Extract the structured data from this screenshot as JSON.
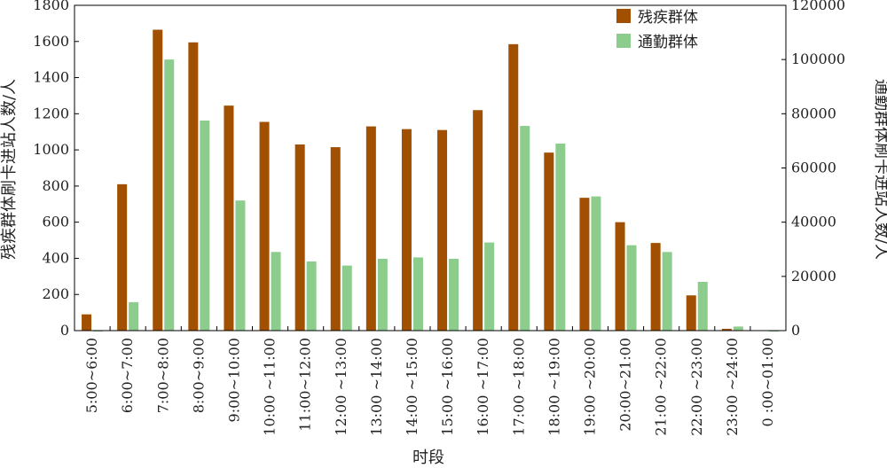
{
  "chart_data": {
    "type": "bar",
    "categories": [
      "5:00~6:00",
      "6:00~7:00",
      "7:00~8:00",
      "8:00~9:00",
      "9:00~10:00",
      "10:00 ~11:00",
      "11:00~12:00",
      "12:00 ~13:00",
      "13:00 ~14:00",
      "14:00 ~15:00",
      "15:00 ~16:00",
      "16:00 ~17:00",
      "17:00 ~18:00",
      "18:00 ~19:00",
      "19:00 ~20:00",
      "20:00~21:00",
      "21:00 ~22:00",
      "22:00 ~23:00",
      "23:00 ~24:00",
      "0 :00~01:00"
    ],
    "series": [
      {
        "name": "残疾群体",
        "axis": "left",
        "color": "#a14f00",
        "values": [
          90,
          810,
          1665,
          1595,
          1245,
          1155,
          1030,
          1015,
          1130,
          1115,
          1110,
          1220,
          1585,
          985,
          735,
          600,
          485,
          195,
          10,
          0
        ]
      },
      {
        "name": "通勤群体",
        "axis": "right",
        "color": "#8ccc8c",
        "values": [
          0,
          10500,
          100000,
          77500,
          48000,
          29000,
          25500,
          24000,
          26500,
          27000,
          26500,
          32500,
          75500,
          69000,
          49500,
          31500,
          29000,
          18000,
          1500,
          0
        ]
      }
    ],
    "xlabel": "时段",
    "ylabel": "残疾群体刷卡进站人数/人",
    "y2label": "通勤群体刷卡进站人数/人",
    "ylim": [
      0,
      1800
    ],
    "y2lim": [
      0,
      120000
    ],
    "yticks": [
      "0",
      "200",
      "400",
      "600",
      "800",
      "1000",
      "1200",
      "1400",
      "1600",
      "1800"
    ],
    "y2ticks": [
      "0",
      "20000",
      "40000",
      "60000",
      "80000",
      "100000",
      "120000"
    ],
    "legend": "top-right",
    "grid": false
  }
}
